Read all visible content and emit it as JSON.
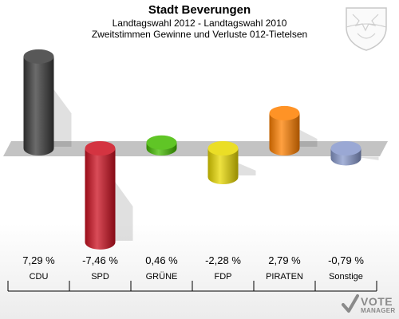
{
  "chart_data": {
    "type": "bar",
    "title": "Stadt Beverungen",
    "subtitle_1": "Landtagswahl 2012 - Landtagswahl 2010",
    "subtitle_2": "Zweitstimmen Gewinne und Verluste 012-Tietelsen",
    "categories": [
      "CDU",
      "SPD",
      "GRÜNE",
      "FDP",
      "PIRATEN",
      "Sonstige"
    ],
    "values": [
      7.29,
      -7.46,
      0.46,
      -2.28,
      2.79,
      -0.79
    ],
    "value_labels": [
      "7,29 %",
      "-7,46 %",
      "0,46 %",
      "-2,28 %",
      "2,79 %",
      "-0,79 %"
    ],
    "colors": [
      "#3a3a3a",
      "#cc1020",
      "#44bb00",
      "#e8d800",
      "#ff8000",
      "#8899cc"
    ],
    "ylim": [
      -7.5,
      7.5
    ]
  },
  "logo": {
    "vote": "VOTE",
    "manager": "MANAGER"
  }
}
